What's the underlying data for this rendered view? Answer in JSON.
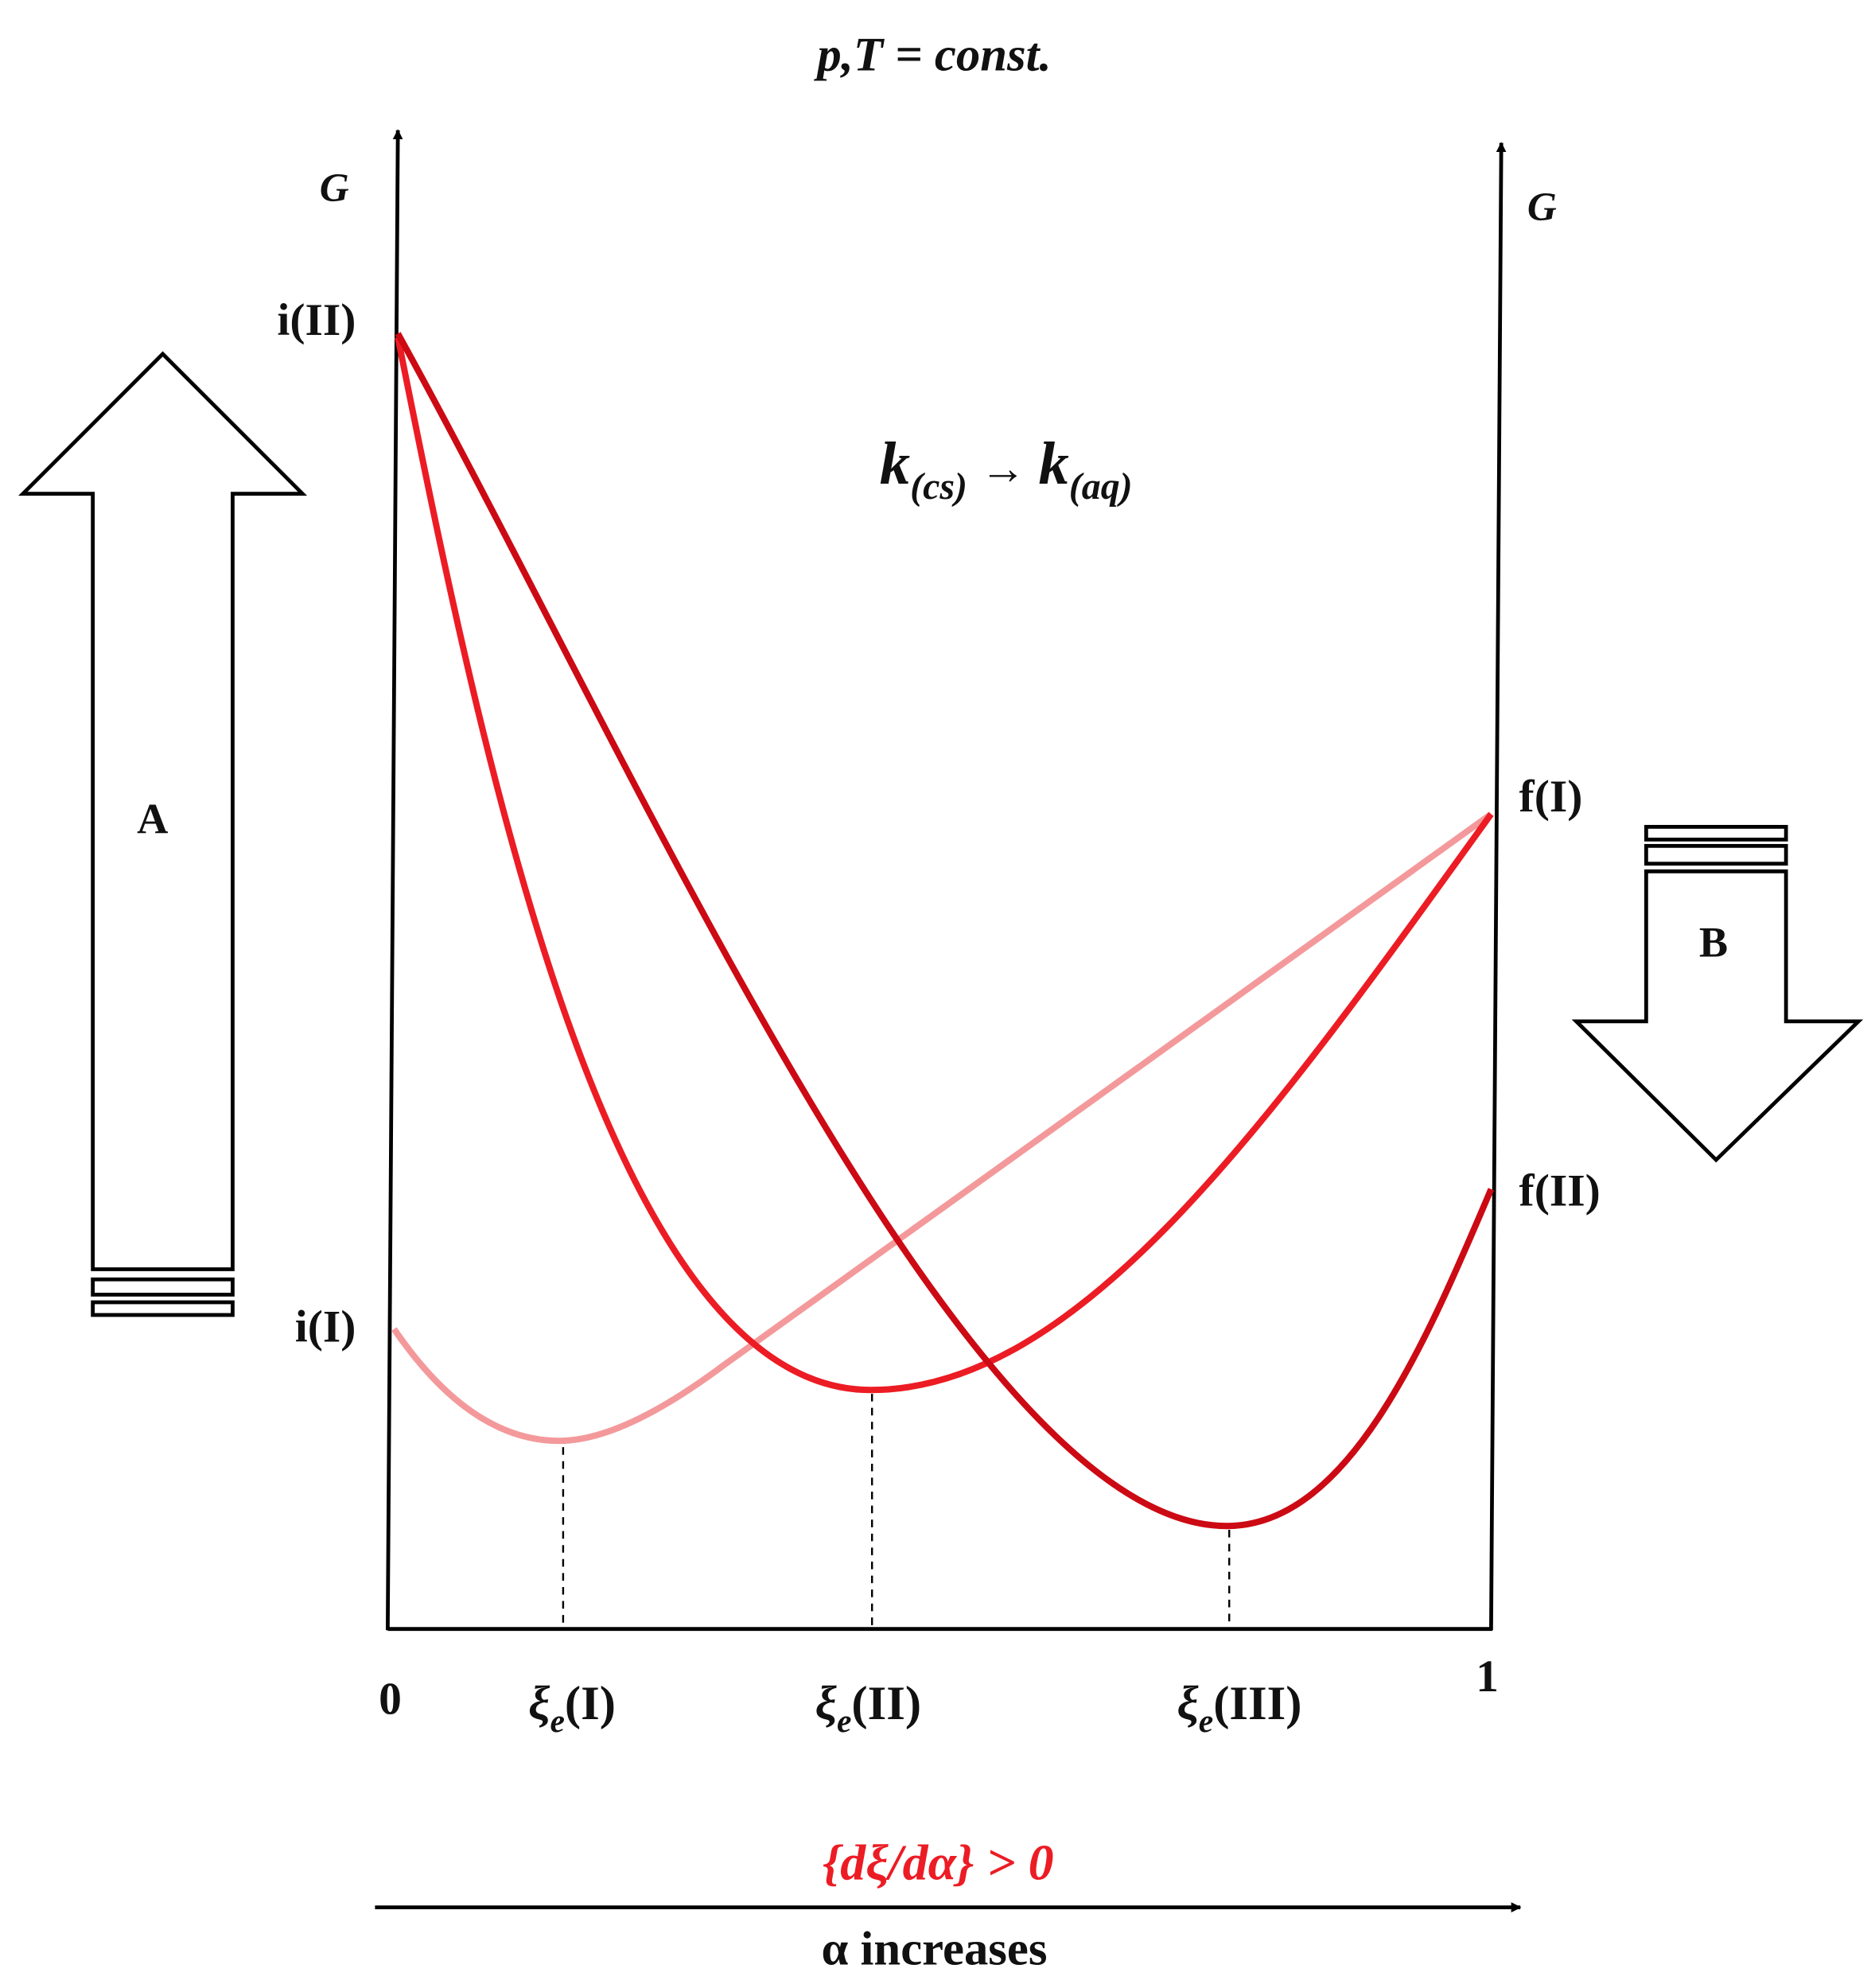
{
  "header": {
    "condition": "p,T = const."
  },
  "axes": {
    "left_label": "G",
    "right_label": "G",
    "x_start": "0",
    "x_end": "1"
  },
  "left_markers": {
    "top": "i(II)",
    "bottom": "i(I)"
  },
  "right_markers": {
    "top": "f(I)",
    "bottom": "f(II)"
  },
  "equation": {
    "parts": [
      "k",
      "(cs)",
      "→",
      "k",
      "(aq)"
    ]
  },
  "xi_labels": [
    {
      "symbol": "ξ",
      "subscript": "e",
      "phase": "(I)"
    },
    {
      "symbol": "ξ",
      "subscript": "e",
      "phase": "(II)"
    },
    {
      "symbol": "ξ",
      "subscript": "e",
      "phase": "(III)"
    }
  ],
  "arrows": {
    "left": "A",
    "right": "B"
  },
  "footer": {
    "condition": "{dξ/dα} > 0",
    "direction": "α increases"
  }
}
